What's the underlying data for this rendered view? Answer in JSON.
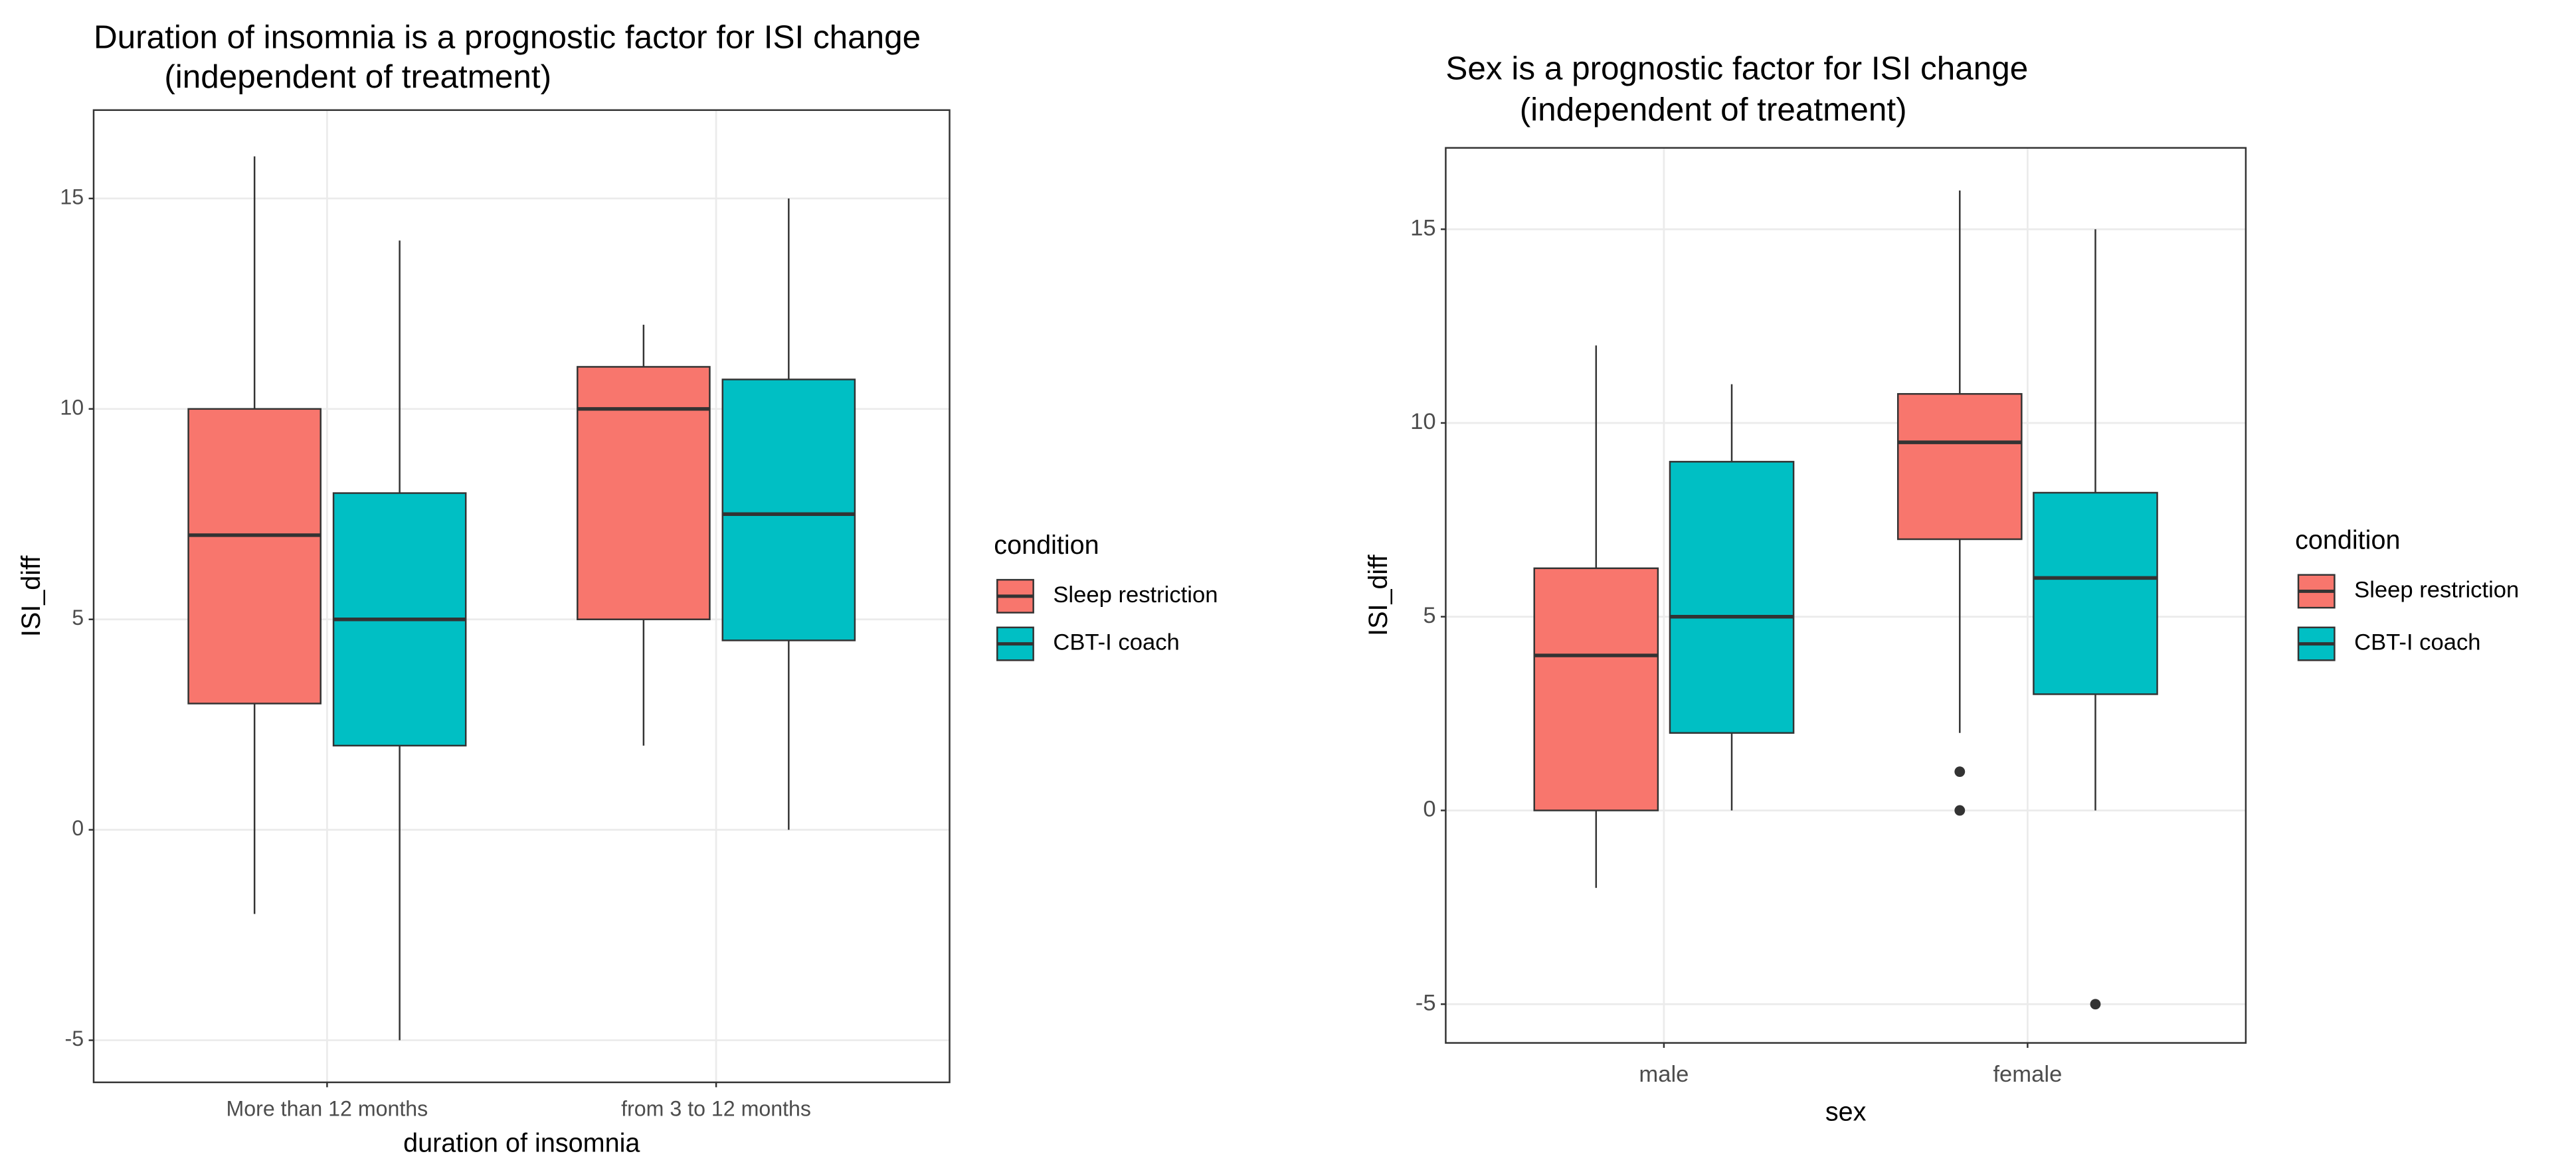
{
  "chart_data": [
    {
      "type": "boxplot",
      "title": [
        "Duration of insomnia is a prognostic factor for ISI change",
        "(independent of treatment)"
      ],
      "x_label": "duration of insomnia",
      "y_label": "ISI_diff",
      "legend_title": "condition",
      "categories": [
        "More than 12 months",
        "from 3 to 12 months"
      ],
      "ylim": [
        -6,
        17.1
      ],
      "yticks": [
        -5,
        0,
        5,
        10,
        15
      ],
      "grid": true,
      "legend": "right",
      "series": [
        {
          "name": "Sleep restriction",
          "color": "#F8766D",
          "boxes": [
            {
              "low": -2,
              "q1": 3,
              "median": 7,
              "q3": 10,
              "high": 16,
              "outliers": []
            },
            {
              "low": 2,
              "q1": 5,
              "median": 10,
              "q3": 11,
              "high": 12,
              "outliers": []
            }
          ]
        },
        {
          "name": "CBT-I coach",
          "color": "#00BFC4",
          "boxes": [
            {
              "low": -5,
              "q1": 2,
              "median": 5,
              "q3": 8,
              "high": 14,
              "outliers": []
            },
            {
              "low": 0,
              "q1": 4.5,
              "median": 7.5,
              "q3": 10.7,
              "high": 15,
              "outliers": []
            }
          ]
        }
      ]
    },
    {
      "type": "boxplot",
      "title": [
        "Sex is a prognostic factor for ISI change",
        "(independent of treatment)"
      ],
      "x_label": "sex",
      "y_label": "ISI_diff",
      "legend_title": "condition",
      "categories": [
        "male",
        "female"
      ],
      "ylim": [
        -6,
        17.1
      ],
      "yticks": [
        -5,
        0,
        5,
        10,
        15
      ],
      "grid": true,
      "legend": "right",
      "series": [
        {
          "name": "Sleep restriction",
          "color": "#F8766D",
          "boxes": [
            {
              "low": -2,
              "q1": 0,
              "median": 4,
              "q3": 6.25,
              "high": 12,
              "outliers": []
            },
            {
              "low": 2,
              "q1": 7,
              "median": 9.5,
              "q3": 10.75,
              "high": 16,
              "outliers": [
                1,
                0
              ]
            }
          ]
        },
        {
          "name": "CBT-I coach",
          "color": "#00BFC4",
          "boxes": [
            {
              "low": 0,
              "q1": 2,
              "median": 5,
              "q3": 9,
              "high": 11,
              "outliers": []
            },
            {
              "low": 0,
              "q1": 3,
              "median": 6,
              "q3": 8.2,
              "high": 15,
              "outliers": [
                -5
              ]
            }
          ]
        }
      ]
    }
  ]
}
